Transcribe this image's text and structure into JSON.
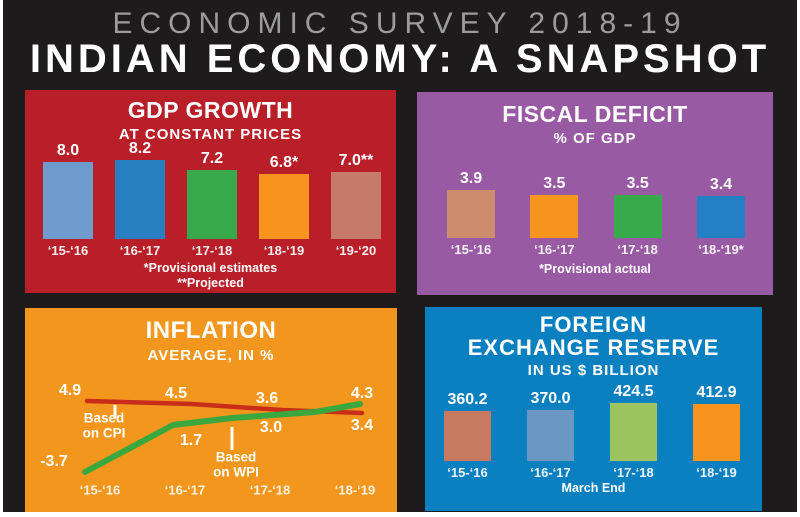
{
  "header": {
    "survey": "ECONOMIC SURVEY 2018-19",
    "title": "INDIAN ECONOMY: A SNAPSHOT"
  },
  "colors": {
    "canvas_background": "#1d1b1b",
    "survey_text": "#9c9c9c",
    "gdp_background": "#b81f28",
    "fiscal_background": "#985aa2",
    "inflation_background": "#f3961e",
    "forex_background": "#0b80c0",
    "cpi_line": "#c82d19",
    "wpi_line": "#3aa83e"
  },
  "chart_data": [
    {
      "id": "gdp",
      "type": "bar",
      "title": "GDP GROWTH",
      "subtitle": "AT CONSTANT PRICES",
      "xlabel": "",
      "ylabel": "",
      "categories": [
        "‘15-‘16",
        "‘16-‘17",
        "‘17-‘18",
        "‘18-‘19",
        "‘19-‘20"
      ],
      "values": [
        8.0,
        8.2,
        7.2,
        6.8,
        7.0
      ],
      "value_labels": [
        "8.0",
        "8.2",
        "7.2",
        "6.8*",
        "7.0**"
      ],
      "bar_colors": [
        "#6e9bcd",
        "#2880c3",
        "#37aa4b",
        "#f7941d",
        "#c57a6a"
      ],
      "notes": [
        "*Provisional estimates",
        "**Projected"
      ],
      "background": "#b81f28"
    },
    {
      "id": "fiscal",
      "type": "bar",
      "title": "FISCAL DEFICIT",
      "subtitle": "% OF GDP",
      "xlabel": "",
      "ylabel": "",
      "categories": [
        "‘15-‘16",
        "‘16-‘17",
        "‘17-‘18",
        "‘18-‘19*"
      ],
      "values": [
        3.9,
        3.5,
        3.5,
        3.4
      ],
      "value_labels": [
        "3.9",
        "3.5",
        "3.5",
        "3.4"
      ],
      "bar_colors": [
        "#cd8c6e",
        "#f7941d",
        "#37aa4b",
        "#2380c5"
      ],
      "notes": [
        "*Provisional actual"
      ],
      "background": "#985aa2"
    },
    {
      "id": "inflation",
      "type": "line",
      "title": "INFLATION",
      "subtitle": "AVERAGE, IN %",
      "xlabel": "",
      "ylabel": "",
      "categories": [
        "‘15-‘16",
        "‘16-‘17",
        "‘17-‘18",
        "‘18-‘19"
      ],
      "series": [
        {
          "name": "Based on CPI",
          "name_lines": [
            "Based",
            "on CPI"
          ],
          "color": "#c82d19",
          "values": [
            4.9,
            4.5,
            3.6,
            4.3
          ],
          "value_labels": [
            "4.9",
            "4.5",
            "3.6",
            "4.3"
          ]
        },
        {
          "name": "Based on WPI",
          "name_lines": [
            "Based",
            "on WPI"
          ],
          "color": "#3aa83e",
          "values": [
            -3.7,
            1.7,
            3.0,
            3.4
          ],
          "value_labels": [
            "-3.7",
            "1.7",
            "3.0",
            "3.4"
          ]
        }
      ],
      "background": "#f3961e"
    },
    {
      "id": "forex",
      "type": "bar",
      "title": "FOREIGN EXCHANGE RESERVE",
      "title_lines": [
        "FOREIGN",
        "EXCHANGE RESERVE"
      ],
      "subtitle": "IN US $ BILLION",
      "xlabel": "",
      "ylabel": "",
      "categories": [
        "‘15-‘16",
        "‘16-‘17",
        "‘17-‘18",
        "‘18-‘19"
      ],
      "values": [
        360.2,
        370.0,
        424.5,
        412.9
      ],
      "value_labels": [
        "360.2",
        "370.0",
        "424.5",
        "412.9"
      ],
      "bar_colors": [
        "#c87a60",
        "#6a98c3",
        "#9bc35f",
        "#f7941d"
      ],
      "notes": [
        "March End"
      ],
      "background": "#0b80c0"
    }
  ]
}
